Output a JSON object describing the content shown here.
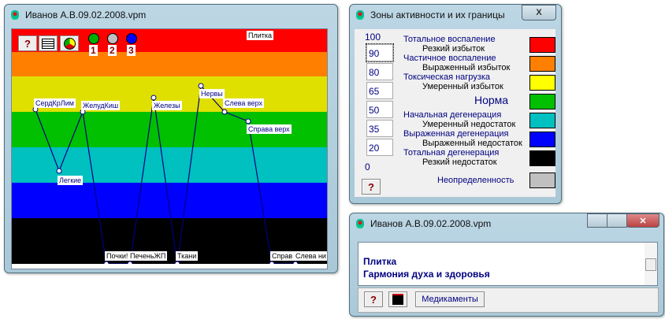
{
  "chart_window": {
    "title": "Иванов А.В.09.02.2008.vpm",
    "help_label": "?",
    "indicators": [
      {
        "label": "1",
        "color": "#00b000"
      },
      {
        "label": "2",
        "color": "#c0c0c0"
      },
      {
        "label": "3",
        "color": "#0000ff"
      }
    ],
    "top_label": "Плитка"
  },
  "chart_data": {
    "type": "line",
    "ylim": [
      0,
      100
    ],
    "grid": false,
    "bands": [
      {
        "from": 90,
        "to": 100,
        "color": "#ff0000"
      },
      {
        "from": 80,
        "to": 90,
        "color": "#ff8000"
      },
      {
        "from": 65,
        "to": 80,
        "color": "#e0e000"
      },
      {
        "from": 50,
        "to": 65,
        "color": "#00c000"
      },
      {
        "from": 35,
        "to": 50,
        "color": "#00c0c0"
      },
      {
        "from": 20,
        "to": 35,
        "color": "#0000ff"
      },
      {
        "from": 0,
        "to": 20,
        "color": "#000000"
      }
    ],
    "line_color": "#000080",
    "points": [
      {
        "label": "СердКрЛим",
        "value": 66
      },
      {
        "label": "Легкие",
        "value": 40
      },
      {
        "label": "ЖелудКиш",
        "value": 65
      },
      {
        "label": "Почки!",
        "value": 0
      },
      {
        "label": "ПеченьЖП",
        "value": 0
      },
      {
        "label": "Железы",
        "value": 71
      },
      {
        "label": "Ткани",
        "value": 0
      },
      {
        "label": "Нервы",
        "value": 76
      },
      {
        "label": "Слева верх",
        "value": 65
      },
      {
        "label": "Справа верх",
        "value": 61
      },
      {
        "label": "Справ",
        "value": 0
      },
      {
        "label": "Слева ни",
        "value": 0
      }
    ]
  },
  "legend_window": {
    "title": "Зоны активности и их границы",
    "top_value": "100",
    "bottom_value": "0",
    "boundaries": [
      "90",
      "80",
      "65",
      "50",
      "35",
      "20"
    ],
    "rows": [
      {
        "title": "Тотальное воспаление",
        "sub": "Резкий избыток",
        "color": "#ff0000"
      },
      {
        "title": "Частичное воспаление",
        "sub": "Выраженный избыток",
        "color": "#ff8000"
      },
      {
        "title": "Токсическая нагрузка",
        "sub": "Умеренный избыток",
        "color": "#ffff00"
      },
      {
        "title": "",
        "sub": "Норма",
        "color": "#00c000"
      },
      {
        "title": "Начальная дегенерация",
        "sub": "Умеренный недостаток",
        "color": "#00c0c0"
      },
      {
        "title": "Выраженная дегенерация",
        "sub": "Выраженный недостаток",
        "color": "#0000ff"
      },
      {
        "title": "Тотальная дегенерация",
        "sub": "Резкий недостаток",
        "color": "#000000"
      }
    ],
    "undefined_label": "Неопределенность",
    "undefined_color": "#c0c0c0",
    "help_label": "?",
    "close_label": "X"
  },
  "text_window": {
    "title": "Иванов А.В.09.02.2008.vpm",
    "lines": [
      "Плитка",
      "Гармония духа и здоровья"
    ],
    "help_label": "?",
    "medicines_label": "Медикаменты"
  }
}
